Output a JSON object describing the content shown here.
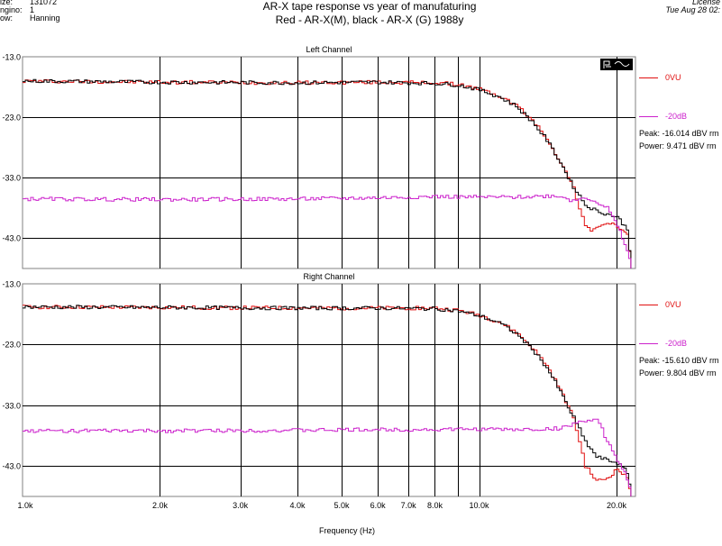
{
  "header": {
    "info_labels": [
      "ize:",
      "ngino:",
      "ow:"
    ],
    "info_values": [
      "131072",
      "1",
      "Hanning"
    ],
    "title_line1": "AR-X tape response vs year of manufaturing",
    "title_line2": "Red - AR-X(M), black - AR-X (G) 1988y",
    "license": "License",
    "date": "Tue Aug 28 02:"
  },
  "chart_data": [
    {
      "type": "line",
      "title": "Left Channel",
      "xlabel": "Frequency (Hz)",
      "x_scale": "log",
      "xlim": [
        1000,
        22000
      ],
      "x_ticks": [
        1000,
        2000,
        3000,
        4000,
        5000,
        6000,
        7000,
        8000,
        10000,
        20000
      ],
      "x_tick_labels": [
        "1.0k",
        "2.0k",
        "3.0k",
        "4.0k",
        "5.0k",
        "6.0k",
        "7.0k",
        "8.0k",
        "10.0k",
        "20.0k"
      ],
      "ylim": [
        -48.0,
        -13.0
      ],
      "y_ticks": [
        -13.0,
        -23.0,
        -33.0,
        -43.0
      ],
      "y_tick_labels": [
        "-13.0",
        "-23.0",
        "-33.0",
        "-43.0"
      ],
      "grid": true,
      "legend_position": "right",
      "legend": [
        "0VU",
        "-20dB"
      ],
      "stats": [
        "Peak: -16.014 dBV rm",
        "Power: 9.471 dBV rm"
      ],
      "series": [
        {
          "name": "0VU",
          "color": "#e01010",
          "x": [
            1000,
            2000,
            4000,
            6000,
            8000,
            9000,
            10000,
            11000,
            12000,
            13000,
            14000,
            15000,
            16000,
            16500,
            17000,
            17500,
            18000,
            19000,
            20000,
            21000,
            21500
          ],
          "y": [
            -17.0,
            -17.2,
            -17.3,
            -17.2,
            -17.3,
            -17.6,
            -18.4,
            -19.5,
            -21.0,
            -23.5,
            -26.5,
            -30.5,
            -34.5,
            -38.0,
            -41.0,
            -42.0,
            -41.0,
            -40.5,
            -41.0,
            -42.5,
            -48.0
          ]
        },
        {
          "name": "",
          "color": "#000000",
          "x": [
            1000,
            2000,
            4000,
            6000,
            8000,
            9000,
            10000,
            11000,
            12000,
            13000,
            14000,
            15000,
            16000,
            17000,
            18000,
            19000,
            20000,
            21000,
            21500
          ],
          "y": [
            -17.0,
            -17.2,
            -17.3,
            -17.2,
            -17.4,
            -17.7,
            -18.5,
            -19.6,
            -21.2,
            -23.7,
            -26.8,
            -30.5,
            -34.5,
            -37.5,
            -38.5,
            -39.0,
            -39.5,
            -41.5,
            -48.0
          ]
        },
        {
          "name": "-20dB",
          "color": "#cc22cc",
          "x": [
            1000,
            2000,
            4000,
            6000,
            8000,
            10000,
            12000,
            14000,
            15000,
            15500,
            16000,
            17000,
            18000,
            19000,
            20000,
            21000,
            21500
          ],
          "y": [
            -36.5,
            -36.6,
            -36.5,
            -36.3,
            -36.1,
            -36.2,
            -36.2,
            -36.0,
            -36.0,
            -36.5,
            -36.8,
            -36.2,
            -37.0,
            -38.0,
            -41.0,
            -45.0,
            -48.0
          ]
        }
      ]
    },
    {
      "type": "line",
      "title": "Right Channel",
      "xlabel": "Frequency (Hz)",
      "x_scale": "log",
      "xlim": [
        1000,
        22000
      ],
      "x_ticks": [
        1000,
        2000,
        3000,
        4000,
        5000,
        6000,
        7000,
        8000,
        10000,
        20000
      ],
      "x_tick_labels": [
        "1.0k",
        "2.0k",
        "3.0k",
        "4.0k",
        "5.0k",
        "6.0k",
        "7.0k",
        "8.0k",
        "10.0k",
        "20.0k"
      ],
      "ylim": [
        -48.0,
        -13.0
      ],
      "y_ticks": [
        -13.0,
        -23.0,
        -33.0,
        -43.0
      ],
      "y_tick_labels": [
        "-13.0",
        "-23.0",
        "-33.0",
        "-43.0"
      ],
      "grid": true,
      "legend_position": "right",
      "legend": [
        "0VU",
        "-20dB"
      ],
      "stats": [
        "Peak: -15.610 dBV rm",
        "Power: 9.804 dBV rm"
      ],
      "series": [
        {
          "name": "0VU",
          "color": "#e01010",
          "x": [
            1000,
            2000,
            4000,
            6000,
            8000,
            9000,
            10000,
            11000,
            12000,
            13000,
            14000,
            15000,
            16000,
            16500,
            17000,
            18000,
            19000,
            20000,
            21000,
            21500
          ],
          "y": [
            -16.8,
            -16.9,
            -17.0,
            -17.0,
            -17.0,
            -17.4,
            -18.2,
            -19.3,
            -21.0,
            -23.5,
            -26.5,
            -30.5,
            -35.0,
            -39.0,
            -43.0,
            -45.5,
            -45.0,
            -43.5,
            -45.0,
            -48.0
          ]
        },
        {
          "name": "",
          "color": "#000000",
          "x": [
            1000,
            2000,
            4000,
            6000,
            8000,
            9000,
            10000,
            11000,
            12000,
            13000,
            14000,
            15000,
            16000,
            17000,
            18000,
            19000,
            20000,
            21000,
            21500
          ],
          "y": [
            -16.8,
            -16.9,
            -17.0,
            -17.0,
            -17.1,
            -17.5,
            -18.3,
            -19.4,
            -21.2,
            -23.7,
            -26.8,
            -30.8,
            -35.0,
            -39.0,
            -41.5,
            -42.0,
            -42.5,
            -44.0,
            -48.0
          ]
        },
        {
          "name": "-20dB",
          "color": "#cc22cc",
          "x": [
            1000,
            2000,
            4000,
            6000,
            8000,
            10000,
            12000,
            14000,
            15000,
            16000,
            17000,
            18000,
            18500,
            19000,
            20000,
            21000,
            21500
          ],
          "y": [
            -37.2,
            -37.2,
            -37.1,
            -37.0,
            -37.0,
            -36.9,
            -37.0,
            -36.9,
            -36.8,
            -36.0,
            -35.5,
            -35.5,
            -37.0,
            -39.0,
            -42.0,
            -45.0,
            -48.0
          ]
        }
      ]
    }
  ]
}
